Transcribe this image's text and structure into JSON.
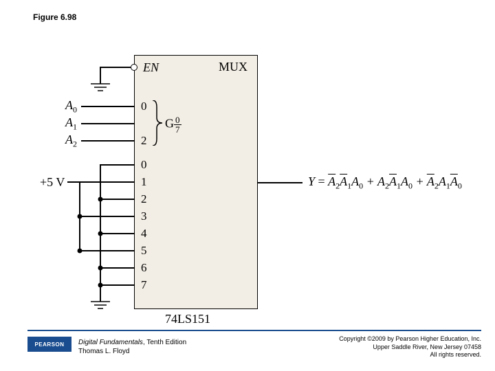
{
  "figure_label": "Figure 6.98",
  "mux": {
    "title": "MUX",
    "enable_label": "EN",
    "select_top": "0",
    "select_bot": "2",
    "g_label": "G",
    "g_frac_num": "0",
    "g_frac_den": "7",
    "data_pins": [
      "0",
      "1",
      "2",
      "3",
      "4",
      "5",
      "6",
      "7"
    ],
    "part_number": "74LS151"
  },
  "inputs": {
    "a0": "A",
    "a0_sub": "0",
    "a1": "A",
    "a1_sub": "1",
    "a2": "A",
    "a2_sub": "2",
    "vcc": "+5 V"
  },
  "output": {
    "var": "Y",
    "eq_html": "<span class='overline'>A</span><span class='sub'>2</span><span class='overline'>A</span><span class='sub'>1</span>A<span class='sub'>0</span> + A<span class='sub'>2</span><span class='overline'>A</span><span class='sub'>1</span>A<span class='sub'>0</span> + <span class='overline'>A</span><span class='sub'>2</span>A<span class='sub'>1</span><span class='overline'>A</span><span class='sub'>0</span>"
  },
  "styling": {
    "box_fill": "#f3eee5",
    "line_color": "#000000",
    "footer_color": "#1a4d8f"
  },
  "footer": {
    "logo_text": "PEARSON",
    "book_title": "Digital Fundamentals",
    "book_edition": ", Tenth Edition",
    "author": "Thomas L. Floyd",
    "copyright1": "Copyright ©2009 by Pearson Higher Education, Inc.",
    "copyright2": "Upper Saddle River, New Jersey 07458",
    "copyright3": "All rights reserved."
  }
}
